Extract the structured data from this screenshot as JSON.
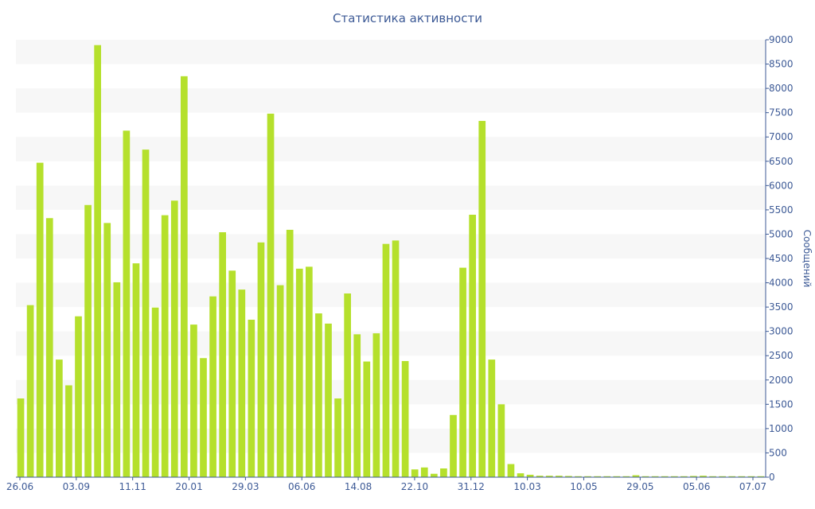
{
  "chart_data": {
    "type": "bar",
    "title": "Статистика активности",
    "xlabel": "",
    "ylabel": "Сообщений",
    "ylim": [
      0,
      9000
    ],
    "yticks": [
      0,
      500,
      1000,
      1500,
      2000,
      2500,
      3000,
      3500,
      4000,
      4500,
      5000,
      5500,
      6000,
      6500,
      7000,
      7500,
      8000,
      8500,
      9000
    ],
    "y_axis_side": "right",
    "grid": "alternating horizontal bands",
    "bar_color": "#b5e02c",
    "band_color": "#f7f7f7",
    "axis_color": "#3d5a96",
    "x_tick_labels": [
      "26.06",
      "03.09",
      "11.11",
      "20.01",
      "29.03",
      "06.06",
      "14.08",
      "22.10",
      "31.12",
      "10.03",
      "10.05",
      "29.05",
      "05.06",
      "07.07"
    ],
    "values": [
      1620,
      3540,
      6470,
      5330,
      2420,
      1890,
      3310,
      5600,
      8890,
      5230,
      4010,
      7130,
      4400,
      6740,
      3490,
      5390,
      5690,
      8250,
      3140,
      2450,
      3720,
      5040,
      4250,
      3860,
      3240,
      4830,
      7480,
      3950,
      5090,
      4290,
      4330,
      3370,
      3160,
      1620,
      3780,
      2940,
      2380,
      2960,
      4800,
      4870,
      2390,
      160,
      200,
      70,
      180,
      1280,
      4310,
      5400,
      7330,
      2420,
      1500,
      270,
      80,
      50,
      30,
      30,
      30,
      25,
      20,
      20,
      20,
      20,
      20,
      20,
      40,
      20,
      20,
      20,
      20,
      20,
      25,
      30,
      20,
      20,
      20,
      20,
      20,
      20
    ]
  }
}
